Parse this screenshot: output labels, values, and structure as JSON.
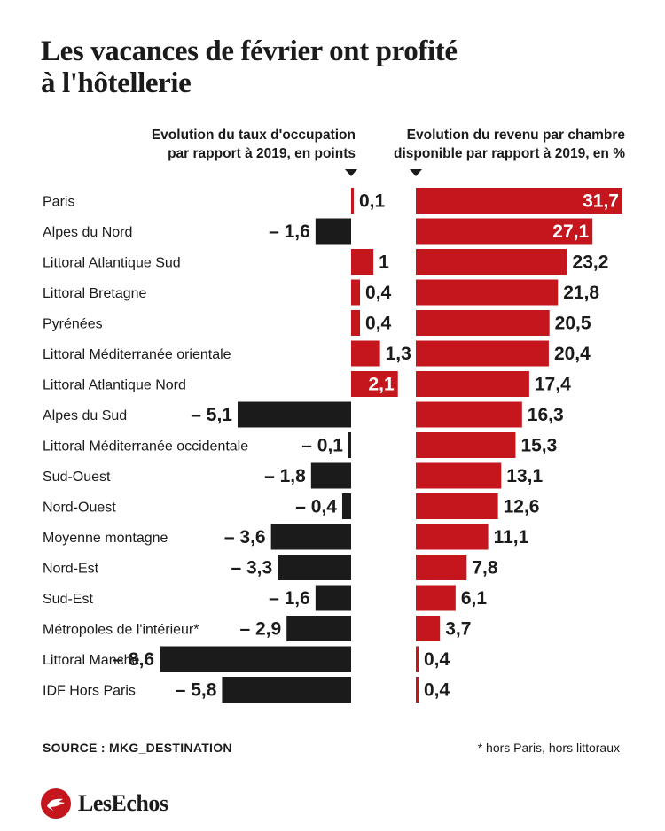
{
  "title": "Les vacances de février ont profité\nà l'hôtellerie",
  "left_header": "Evolution du taux d'occupation\npar rapport à 2019, en points",
  "right_header": "Evolution du revenu par chambre\ndisponible par rapport à 2019, en %",
  "colors": {
    "positive": "#c4161c",
    "negative": "#1b1b1b",
    "text": "#1b1b1b",
    "label_on_bar": "#ffffff"
  },
  "chart_data": [
    {
      "type": "bar",
      "orientation": "horizontal",
      "title": "Evolution du taux d'occupation par rapport à 2019, en points",
      "categories": [
        "Paris",
        "Alpes du Nord",
        "Littoral Atlantique Sud",
        "Littoral Bretagne",
        "Pyrénées",
        "Littoral Méditerranée orientale",
        "Littoral Atlantique Nord",
        "Alpes du Sud",
        "Littoral Méditerranée occidentale",
        "Sud-Ouest",
        "Nord-Ouest",
        "Moyenne montagne",
        "Nord-Est",
        "Sud-Est",
        "Métropoles de l'intérieur*",
        "Littoral Manche",
        "IDF Hors Paris"
      ],
      "values": [
        0.1,
        -1.6,
        1,
        0.4,
        0.4,
        1.3,
        2.1,
        -5.1,
        -0.1,
        -1.8,
        -0.4,
        -3.6,
        -3.3,
        -1.6,
        -2.9,
        -8.6,
        -5.8
      ],
      "labels": [
        "0,1",
        "– 1,6",
        "1",
        "0,4",
        "0,4",
        "1,3",
        "2,1",
        "– 5,1",
        "– 0,1",
        "– 1,8",
        "– 0,4",
        "– 3,6",
        "– 3,3",
        "– 1,6",
        "– 2,9",
        "– 8,6",
        "– 5,8"
      ],
      "labels_inside": [
        6
      ],
      "units": "points"
    },
    {
      "type": "bar",
      "orientation": "horizontal",
      "title": "Evolution du revenu par chambre disponible par rapport à 2019, en %",
      "categories": [
        "Paris",
        "Alpes du Nord",
        "Littoral Atlantique Sud",
        "Littoral Bretagne",
        "Pyrénées",
        "Littoral Méditerranée orientale",
        "Littoral Atlantique Nord",
        "Alpes du Sud",
        "Littoral Méditerranée occidentale",
        "Sud-Ouest",
        "Nord-Ouest",
        "Moyenne montagne",
        "Nord-Est",
        "Sud-Est",
        "Métropoles de l'intérieur*",
        "Littoral Manche",
        "IDF Hors Paris"
      ],
      "values": [
        31.7,
        27.1,
        23.2,
        21.8,
        20.5,
        20.4,
        17.4,
        16.3,
        15.3,
        13.1,
        12.6,
        11.1,
        7.8,
        6.1,
        3.7,
        0.4,
        0.4
      ],
      "labels": [
        "31,7",
        "27,1",
        "23,2",
        "21,8",
        "20,5",
        "20,4",
        "17,4",
        "16,3",
        "15,3",
        "13,1",
        "12,6",
        "11,1",
        "7,8",
        "6,1",
        "3,7",
        "0,4",
        "0,4"
      ],
      "labels_inside": [
        0,
        1
      ],
      "units": "%"
    }
  ],
  "source": "SOURCE : MKG_DESTINATION",
  "footnote": "* hors Paris, hors littoraux",
  "brand": "LesEchos"
}
